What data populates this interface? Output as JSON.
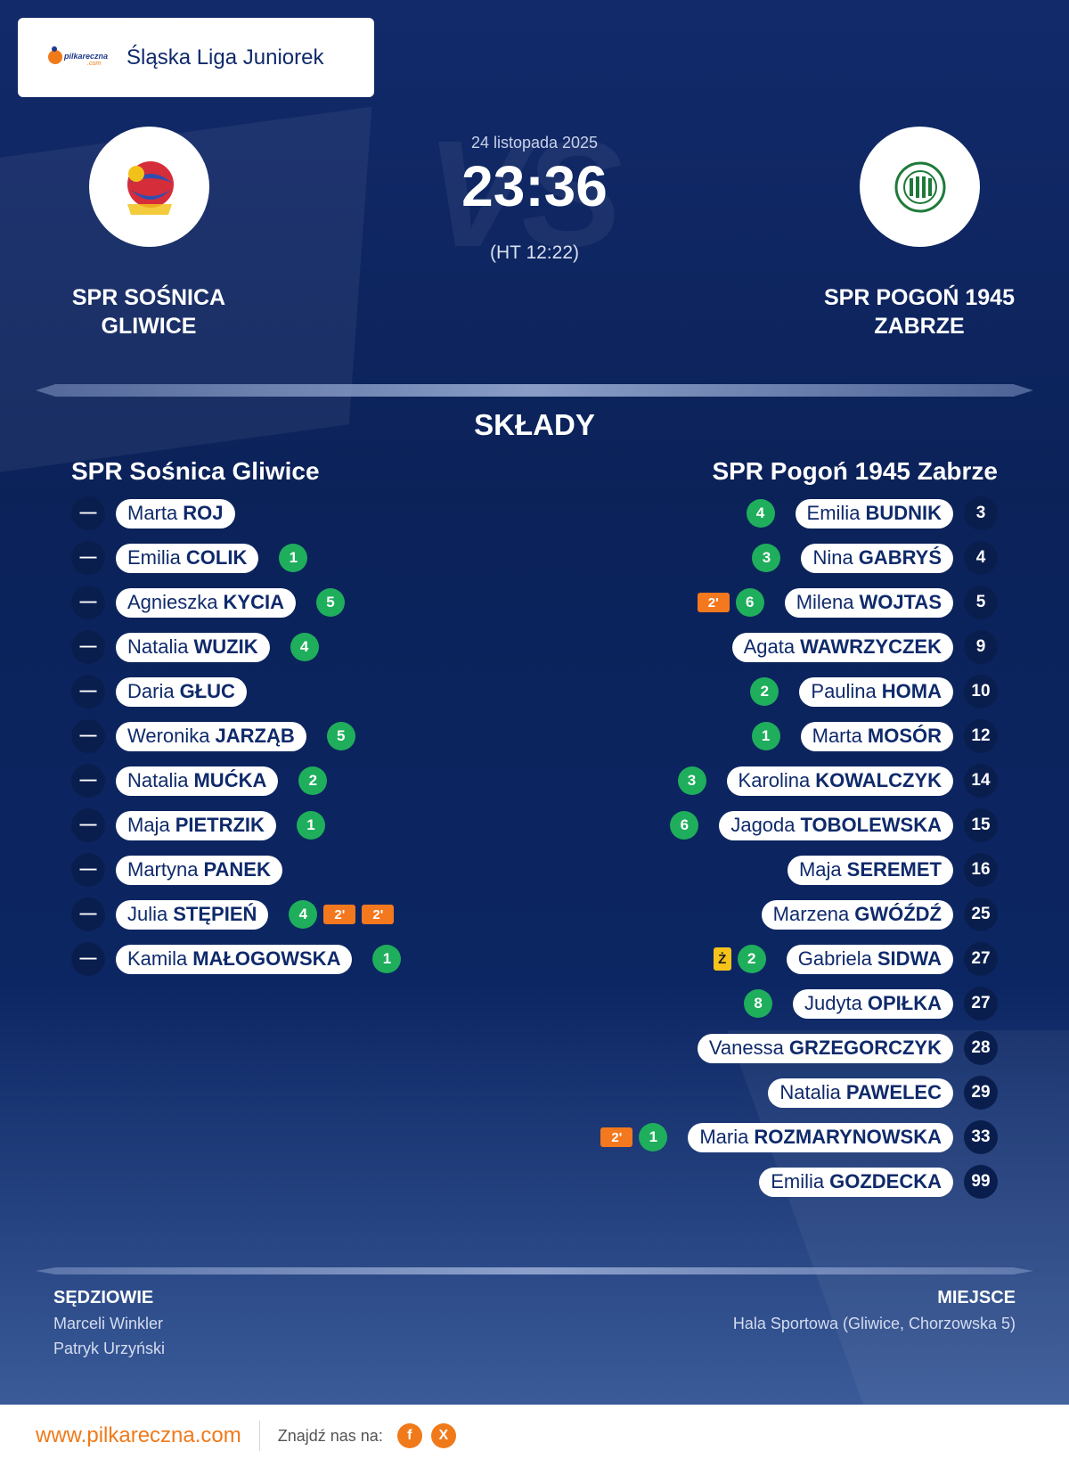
{
  "league": "Śląska Liga Juniorek",
  "match": {
    "date": "24 listopada 2025",
    "score": "23:36",
    "halftime": "(HT 12:22)"
  },
  "home": {
    "name_line1": "SPR SOŚNICA",
    "name_line2": "GLIWICE",
    "squad_title": "SPR Sośnica Gliwice",
    "players": [
      {
        "num": "—",
        "first": "Marta",
        "last": "ROJ",
        "goals": "",
        "pens": []
      },
      {
        "num": "—",
        "first": "Emilia",
        "last": "COLIK",
        "goals": "1",
        "pens": []
      },
      {
        "num": "—",
        "first": "Agnieszka",
        "last": "KYCIA",
        "goals": "5",
        "pens": []
      },
      {
        "num": "—",
        "first": "Natalia",
        "last": "WUZIK",
        "goals": "4",
        "pens": []
      },
      {
        "num": "—",
        "first": "Daria",
        "last": "GŁUC",
        "goals": "",
        "pens": []
      },
      {
        "num": "—",
        "first": "Weronika",
        "last": "JARZĄB",
        "goals": "5",
        "pens": []
      },
      {
        "num": "—",
        "first": "Natalia",
        "last": "MUĆKA",
        "goals": "2",
        "pens": []
      },
      {
        "num": "—",
        "first": "Maja",
        "last": "PIETRZIK",
        "goals": "1",
        "pens": []
      },
      {
        "num": "—",
        "first": "Martyna",
        "last": "PANEK",
        "goals": "",
        "pens": []
      },
      {
        "num": "—",
        "first": "Julia",
        "last": "STĘPIEŃ",
        "goals": "4",
        "pens": [
          "2'",
          "2'"
        ]
      },
      {
        "num": "—",
        "first": "Kamila",
        "last": "MAŁOGOWSKA",
        "goals": "1",
        "pens": []
      }
    ]
  },
  "away": {
    "name_line1": "SPR POGOŃ 1945",
    "name_line2": "ZABRZE",
    "squad_title": "SPR Pogoń 1945 Zabrze",
    "players": [
      {
        "num": "3",
        "first": "Emilia",
        "last": "BUDNIK",
        "goals": "4",
        "pens": []
      },
      {
        "num": "4",
        "first": "Nina",
        "last": "GABRYŚ",
        "goals": "3",
        "pens": []
      },
      {
        "num": "5",
        "first": "Milena",
        "last": "WOJTAS",
        "goals": "6",
        "pens": [
          "2'"
        ]
      },
      {
        "num": "9",
        "first": "Agata",
        "last": "WAWRZYCZEK",
        "goals": "",
        "pens": []
      },
      {
        "num": "10",
        "first": "Paulina",
        "last": "HOMA",
        "goals": "2",
        "pens": []
      },
      {
        "num": "12",
        "first": "Marta",
        "last": "MOSÓR",
        "goals": "1",
        "pens": []
      },
      {
        "num": "14",
        "first": "Karolina",
        "last": "KOWALCZYK",
        "goals": "3",
        "pens": []
      },
      {
        "num": "15",
        "first": "Jagoda",
        "last": "TOBOLEWSKA",
        "goals": "6",
        "pens": []
      },
      {
        "num": "16",
        "first": "Maja",
        "last": "SEREMET",
        "goals": "",
        "pens": []
      },
      {
        "num": "25",
        "first": "Marzena",
        "last": "GWÓŹDŹ",
        "goals": "",
        "pens": []
      },
      {
        "num": "27",
        "first": "Gabriela",
        "last": "SIDWA",
        "goals": "2",
        "pens": [],
        "yellow": "Ż"
      },
      {
        "num": "27",
        "first": "Judyta",
        "last": "OPIŁKA",
        "goals": "8",
        "pens": []
      },
      {
        "num": "28",
        "first": "Vanessa",
        "last": "GRZEGORCZYK",
        "goals": "",
        "pens": []
      },
      {
        "num": "29",
        "first": "Natalia",
        "last": "PAWELEC",
        "goals": "",
        "pens": []
      },
      {
        "num": "33",
        "first": "Maria",
        "last": "ROZMARYNOWSKA",
        "goals": "1",
        "pens": [
          "2'"
        ]
      },
      {
        "num": "99",
        "first": "Emilia",
        "last": "GOZDECKA",
        "goals": "",
        "pens": []
      }
    ]
  },
  "section_title": "SKŁADY",
  "referees": {
    "title": "SĘDZIOWIE",
    "names": [
      "Marceli Winkler",
      "Patryk Urzyński"
    ]
  },
  "venue": {
    "title": "MIEJSCE",
    "name": "Hala Sportowa (Gliwice, Chorzowska 5)"
  },
  "footer": {
    "url": "www.pilkareczna.com",
    "find_us": "Znajdź nas na:",
    "facebook": "f",
    "x": "X"
  },
  "logo": {
    "site_text": "pilkareczna",
    "site_suffix": ".com"
  }
}
